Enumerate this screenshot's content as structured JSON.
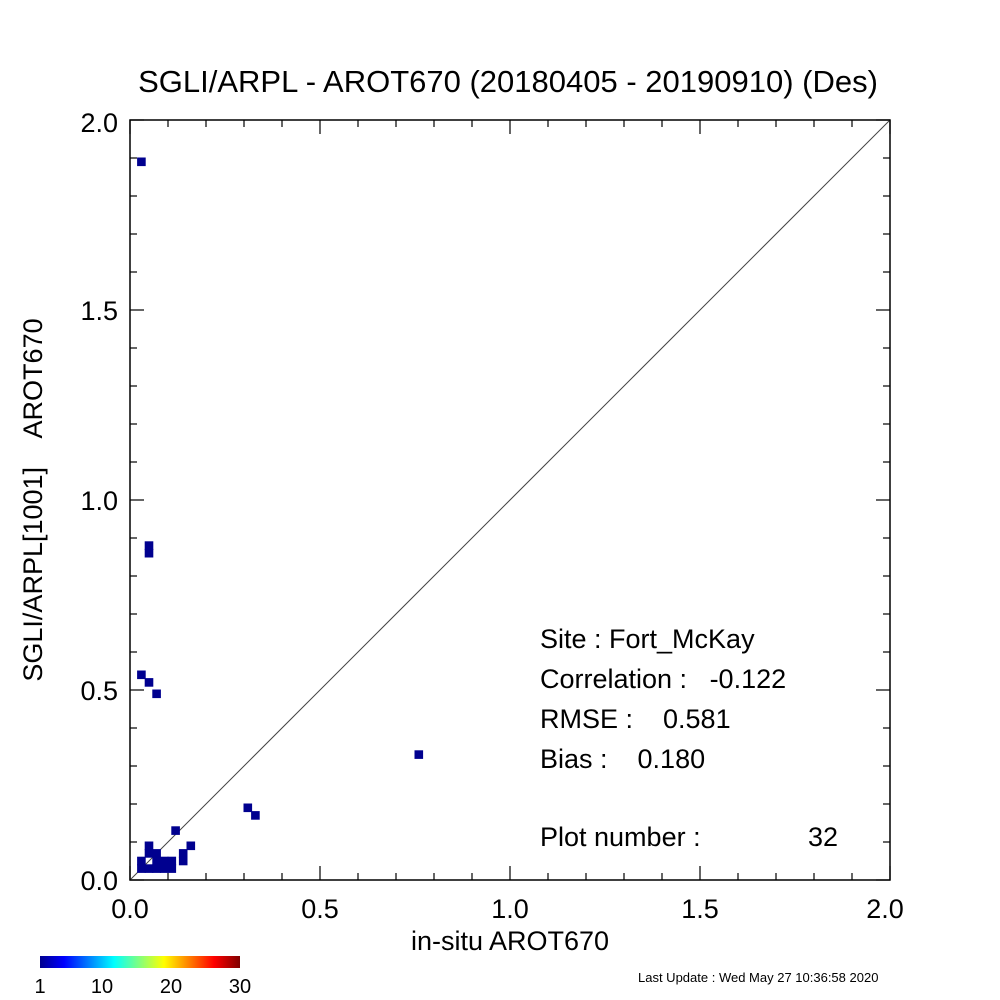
{
  "chart_data": {
    "type": "heatmap",
    "title": "SGLI/ARPL - AROT670 (20180405 - 20190910) (Des)",
    "xlabel": "in-situ AROT670",
    "ylabel": "SGLI/ARPL[1001]    AROT670",
    "xlim": [
      0.0,
      2.0
    ],
    "ylim": [
      0.0,
      2.0
    ],
    "xticks": [
      "0.0",
      "0.5",
      "1.0",
      "1.5",
      "2.0"
    ],
    "yticks": [
      "0.0",
      "0.5",
      "1.0",
      "1.5",
      "2.0"
    ],
    "reference_line": "1:1",
    "bin_size": 0.02,
    "points": [
      {
        "x": 0.03,
        "y": 1.89,
        "count": 1
      },
      {
        "x": 0.05,
        "y": 0.88,
        "count": 1
      },
      {
        "x": 0.05,
        "y": 0.86,
        "count": 1
      },
      {
        "x": 0.03,
        "y": 0.54,
        "count": 1
      },
      {
        "x": 0.05,
        "y": 0.52,
        "count": 1
      },
      {
        "x": 0.07,
        "y": 0.49,
        "count": 1
      },
      {
        "x": 0.76,
        "y": 0.33,
        "count": 1
      },
      {
        "x": 0.31,
        "y": 0.19,
        "count": 1
      },
      {
        "x": 0.33,
        "y": 0.17,
        "count": 1
      },
      {
        "x": 0.12,
        "y": 0.13,
        "count": 1
      },
      {
        "x": 0.16,
        "y": 0.09,
        "count": 1
      },
      {
        "x": 0.05,
        "y": 0.09,
        "count": 1
      },
      {
        "x": 0.05,
        "y": 0.07,
        "count": 1
      },
      {
        "x": 0.07,
        "y": 0.07,
        "count": 1
      },
      {
        "x": 0.14,
        "y": 0.07,
        "count": 1
      },
      {
        "x": 0.14,
        "y": 0.05,
        "count": 1
      },
      {
        "x": 0.03,
        "y": 0.05,
        "count": 1
      },
      {
        "x": 0.07,
        "y": 0.05,
        "count": 1
      },
      {
        "x": 0.09,
        "y": 0.05,
        "count": 1
      },
      {
        "x": 0.11,
        "y": 0.05,
        "count": 1
      },
      {
        "x": 0.03,
        "y": 0.03,
        "count": 1
      },
      {
        "x": 0.05,
        "y": 0.03,
        "count": 1
      },
      {
        "x": 0.07,
        "y": 0.03,
        "count": 1
      },
      {
        "x": 0.09,
        "y": 0.03,
        "count": 1
      },
      {
        "x": 0.11,
        "y": 0.03,
        "count": 1
      }
    ],
    "annotations": {
      "site": "Site : Fort_McKay",
      "correlation": "Correlation :   -0.122",
      "rmse": "RMSE :    0.581",
      "bias": "Bias :    0.180",
      "plot_number_label": "Plot number :",
      "plot_number_value": "32"
    },
    "colorbar": {
      "min": 1,
      "max": 30,
      "tick_labels": [
        "1",
        "10",
        "20",
        "30"
      ],
      "colormap": "jet"
    },
    "point_color": "#00008f"
  },
  "footer": {
    "last_update": "Last Update : Wed May 27 10:36:58 2020"
  }
}
